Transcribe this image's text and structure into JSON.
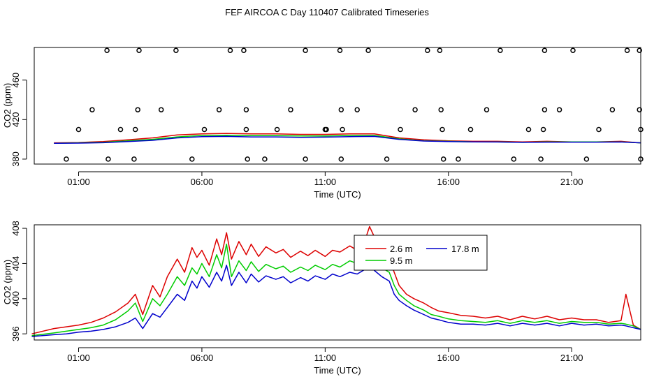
{
  "title": "FEF AIRCOA C  Day 110407  Calibrated Timeseries",
  "chart_data": [
    {
      "type": "scatter+line",
      "xlabel": "Time (UTC)",
      "ylabel": "CO2 (ppm)",
      "xlim": [
        -0.8,
        23.8
      ],
      "ylim": [
        375,
        493
      ],
      "xticks": [
        {
          "v": 1,
          "label": "01:00"
        },
        {
          "v": 6,
          "label": "06:00"
        },
        {
          "v": 11,
          "label": "11:00"
        },
        {
          "v": 16,
          "label": "16:00"
        },
        {
          "v": 21,
          "label": "21:00"
        }
      ],
      "yticks": [
        {
          "v": 380,
          "label": "380"
        },
        {
          "v": 420,
          "label": "420"
        },
        {
          "v": 460,
          "label": "460"
        }
      ],
      "calibration_points": [
        [
          0.5,
          380
        ],
        [
          1.0,
          410
        ],
        [
          1.55,
          430
        ],
        [
          2.15,
          490
        ],
        [
          2.2,
          380
        ],
        [
          2.7,
          410
        ],
        [
          3.25,
          380
        ],
        [
          3.3,
          410
        ],
        [
          3.4,
          430
        ],
        [
          3.45,
          490
        ],
        [
          4.35,
          430
        ],
        [
          4.95,
          490
        ],
        [
          5.6,
          380
        ],
        [
          6.1,
          410
        ],
        [
          6.7,
          430
        ],
        [
          7.15,
          490
        ],
        [
          7.7,
          490
        ],
        [
          7.8,
          430
        ],
        [
          7.8,
          410
        ],
        [
          7.85,
          380
        ],
        [
          8.55,
          380
        ],
        [
          9.05,
          410
        ],
        [
          9.6,
          430
        ],
        [
          10.2,
          380
        ],
        [
          10.2,
          490
        ],
        [
          11.0,
          410
        ],
        [
          11.05,
          410
        ],
        [
          11.6,
          490
        ],
        [
          11.65,
          430
        ],
        [
          11.65,
          380
        ],
        [
          11.7,
          410
        ],
        [
          12.3,
          430
        ],
        [
          12.75,
          490
        ],
        [
          13.5,
          380
        ],
        [
          14.05,
          410
        ],
        [
          14.65,
          430
        ],
        [
          15.15,
          490
        ],
        [
          15.65,
          490
        ],
        [
          15.7,
          430
        ],
        [
          15.75,
          410
        ],
        [
          15.8,
          380
        ],
        [
          16.4,
          380
        ],
        [
          16.9,
          410
        ],
        [
          17.55,
          430
        ],
        [
          18.1,
          490
        ],
        [
          18.65,
          380
        ],
        [
          19.25,
          410
        ],
        [
          19.75,
          380
        ],
        [
          19.85,
          410
        ],
        [
          19.9,
          430
        ],
        [
          19.9,
          490
        ],
        [
          20.5,
          430
        ],
        [
          21.05,
          490
        ],
        [
          21.6,
          380
        ],
        [
          22.1,
          410
        ],
        [
          22.65,
          430
        ],
        [
          23.25,
          490
        ],
        [
          23.75,
          490
        ],
        [
          23.8,
          380
        ],
        [
          23.8,
          410
        ],
        [
          23.75,
          430
        ]
      ],
      "series": [
        {
          "name": "2.6 m",
          "color": "#dd0000",
          "x": [
            0,
            1,
            2,
            3,
            4,
            5,
            6,
            7,
            8,
            9,
            10,
            11,
            12,
            13,
            14,
            15,
            16,
            17,
            18,
            19,
            20,
            21,
            22,
            23,
            23.5,
            23.8
          ],
          "values": [
            396.5,
            396.8,
            397.8,
            399.5,
            401.5,
            404.5,
            405.5,
            406,
            405.5,
            405.5,
            405,
            405,
            405.5,
            405.5,
            401.5,
            399.5,
            398.5,
            398,
            398,
            397.5,
            398,
            397.5,
            397.5,
            398,
            397,
            396.5
          ]
        },
        {
          "name": "9.5 m",
          "color": "#00cc00",
          "x": [
            0,
            1,
            2,
            3,
            4,
            5,
            6,
            7,
            8,
            9,
            10,
            11,
            12,
            13,
            14,
            15,
            16,
            17,
            18,
            19,
            20,
            21,
            22,
            23,
            23.5,
            23.8
          ],
          "values": [
            396,
            396.5,
            397,
            398.5,
            400,
            402.5,
            404,
            404.2,
            403.8,
            403.8,
            403.5,
            403.5,
            404,
            404,
            400.5,
            398.5,
            398,
            397.5,
            397.5,
            397,
            397.5,
            397.5,
            397.5,
            397.5,
            396.8,
            396.5
          ]
        },
        {
          "name": "17.8 m",
          "color": "#0000cc",
          "x": [
            0,
            1,
            2,
            3,
            4,
            5,
            6,
            7,
            8,
            9,
            10,
            11,
            12,
            13,
            14,
            15,
            16,
            17,
            18,
            19,
            20,
            21,
            22,
            23,
            23.5,
            23.8
          ],
          "values": [
            396,
            396.2,
            396.6,
            397.8,
            399,
            401.5,
            402.7,
            403,
            402.5,
            402.5,
            402,
            402.3,
            402.8,
            403,
            400,
            398.3,
            397.8,
            397.5,
            397.3,
            397,
            397.2,
            397.2,
            397.2,
            397.3,
            396.8,
            396.5
          ]
        }
      ]
    },
    {
      "type": "line",
      "xlabel": "Time (UTC)",
      "ylabel": "CO2 (ppm)",
      "xlim": [
        -0.8,
        23.8
      ],
      "ylim": [
        395.3,
        408.4
      ],
      "xticks": [
        {
          "v": 1,
          "label": "01:00"
        },
        {
          "v": 6,
          "label": "06:00"
        },
        {
          "v": 11,
          "label": "11:00"
        },
        {
          "v": 16,
          "label": "16:00"
        },
        {
          "v": 21,
          "label": "21:00"
        }
      ],
      "yticks": [
        {
          "v": 396,
          "label": "396"
        },
        {
          "v": 400,
          "label": "400"
        },
        {
          "v": 404,
          "label": "404"
        },
        {
          "v": 408,
          "label": "408"
        }
      ],
      "legend": "top-right",
      "series": [
        {
          "name": "2.6 m",
          "color": "#dd0000",
          "x": [
            -0.9,
            0,
            0.5,
            1,
            1.5,
            2,
            2.5,
            3,
            3.3,
            3.6,
            4,
            4.3,
            4.6,
            5,
            5.3,
            5.6,
            5.8,
            6,
            6.3,
            6.6,
            6.8,
            7,
            7.2,
            7.5,
            7.8,
            8,
            8.3,
            8.6,
            9,
            9.3,
            9.6,
            10,
            10.3,
            10.6,
            11,
            11.3,
            11.6,
            12,
            12.3,
            12.6,
            12.8,
            13,
            13.3,
            13.6,
            13.8,
            14,
            14.3,
            14.6,
            15,
            15.3,
            15.6,
            16,
            16.5,
            17,
            17.5,
            18,
            18.5,
            19,
            19.5,
            20,
            20.5,
            21,
            21.5,
            22,
            22.5,
            23,
            23.2,
            23.5,
            23.8
          ],
          "values": [
            396,
            396.6,
            396.8,
            397,
            397.3,
            397.8,
            398.5,
            399.5,
            400.5,
            398.2,
            401.5,
            400.2,
            402.5,
            404.5,
            403,
            405.8,
            404.7,
            405.5,
            403.8,
            406.8,
            405,
            407.5,
            404.5,
            406.5,
            405,
            406.2,
            404.8,
            405.9,
            405.2,
            405.6,
            404.7,
            405.4,
            404.9,
            405.5,
            404.8,
            405.5,
            405.3,
            406,
            405.5,
            406.5,
            408.2,
            407,
            405.5,
            404.5,
            403,
            401.5,
            400.5,
            400,
            399.5,
            399,
            398.6,
            398.4,
            398.1,
            398,
            397.8,
            398,
            397.6,
            398,
            397.7,
            398,
            397.6,
            397.8,
            397.6,
            397.6,
            397.3,
            397.5,
            400.5,
            397,
            396.5
          ]
        },
        {
          "name": "9.5 m",
          "color": "#00cc00",
          "x": [
            -0.9,
            0,
            0.5,
            1,
            1.5,
            2,
            2.5,
            3,
            3.3,
            3.6,
            4,
            4.3,
            4.6,
            5,
            5.3,
            5.6,
            5.8,
            6,
            6.3,
            6.6,
            6.8,
            7,
            7.2,
            7.5,
            7.8,
            8,
            8.3,
            8.6,
            9,
            9.3,
            9.6,
            10,
            10.3,
            10.6,
            11,
            11.3,
            11.6,
            12,
            12.3,
            12.6,
            12.8,
            13,
            13.3,
            13.6,
            13.8,
            14,
            14.3,
            14.6,
            15,
            15.3,
            15.6,
            16,
            16.5,
            17,
            17.5,
            18,
            18.5,
            19,
            19.5,
            20,
            20.5,
            21,
            21.5,
            22,
            22.5,
            23,
            23.2,
            23.5,
            23.8
          ],
          "values": [
            395.8,
            396.1,
            396.3,
            396.5,
            396.7,
            397,
            397.6,
            398.6,
            399.5,
            397.4,
            400,
            399.2,
            400.5,
            402.5,
            401.5,
            403.5,
            402.8,
            404,
            402.5,
            405,
            403.5,
            406.2,
            402.5,
            404.3,
            403.2,
            404.2,
            403.1,
            403.9,
            403.4,
            403.7,
            403,
            403.6,
            403.2,
            403.8,
            403.3,
            403.9,
            403.6,
            404.3,
            404,
            404.6,
            405,
            404.3,
            403.5,
            403,
            401.5,
            400.5,
            399.8,
            399.2,
            398.7,
            398.2,
            398,
            397.7,
            397.5,
            397.4,
            397.3,
            397.5,
            397.2,
            397.5,
            397.3,
            397.5,
            397.2,
            397.4,
            397.3,
            397.3,
            397.1,
            397.2,
            397.1,
            396.9,
            396.5
          ]
        },
        {
          "name": "17.8 m",
          "color": "#0000cc",
          "x": [
            -0.9,
            0,
            0.5,
            1,
            1.5,
            2,
            2.5,
            3,
            3.3,
            3.6,
            4,
            4.3,
            4.6,
            5,
            5.3,
            5.6,
            5.8,
            6,
            6.3,
            6.6,
            6.8,
            7,
            7.2,
            7.5,
            7.8,
            8,
            8.3,
            8.6,
            9,
            9.3,
            9.6,
            10,
            10.3,
            10.6,
            11,
            11.3,
            11.6,
            12,
            12.3,
            12.6,
            12.8,
            13,
            13.3,
            13.6,
            13.8,
            14,
            14.3,
            14.6,
            15,
            15.3,
            15.6,
            16,
            16.5,
            17,
            17.5,
            18,
            18.5,
            19,
            19.5,
            20,
            20.5,
            21,
            21.5,
            22,
            22.5,
            23,
            23.2,
            23.5,
            23.8
          ],
          "values": [
            395.7,
            395.9,
            396,
            396.2,
            396.3,
            396.5,
            396.8,
            397.3,
            397.8,
            396.6,
            398.3,
            397.9,
            399,
            400.5,
            399.8,
            402,
            401.2,
            402.5,
            401.3,
            403,
            402,
            403.8,
            401.5,
            403,
            401.8,
            402.8,
            401.9,
            402.6,
            402.2,
            402.5,
            401.8,
            402.4,
            402,
            402.6,
            402.2,
            402.8,
            402.5,
            403,
            402.8,
            403.3,
            403.8,
            403.2,
            402.5,
            402,
            400.5,
            399.8,
            399.2,
            398.7,
            398.2,
            397.8,
            397.6,
            397.3,
            397.1,
            397.1,
            397,
            397.2,
            396.9,
            397.2,
            397,
            397.2,
            396.9,
            397.2,
            397,
            397.1,
            396.9,
            397,
            396.9,
            396.7,
            396.5
          ]
        }
      ]
    }
  ]
}
